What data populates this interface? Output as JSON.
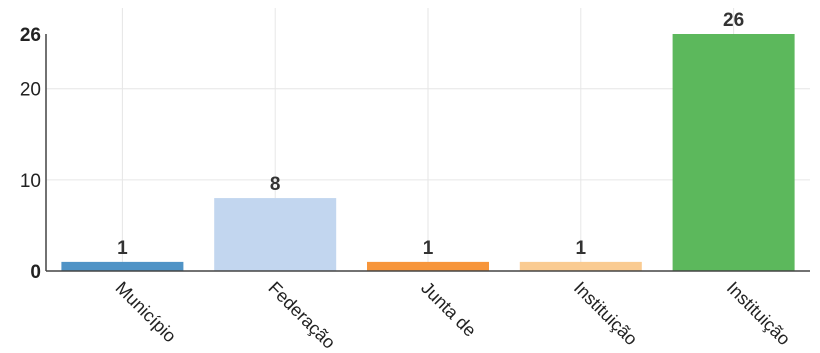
{
  "chart_data": {
    "type": "bar",
    "categories": [
      "Município",
      "Federação",
      "Junta de",
      "Instituição",
      "Instituição"
    ],
    "values": [
      1,
      8,
      1,
      1,
      26
    ],
    "colors": [
      "#4f93c6",
      "#c2d6ef",
      "#f7953a",
      "#facb91",
      "#5cb85c"
    ],
    "ylim": [
      0,
      26
    ],
    "yticks": [
      0,
      10,
      20,
      26
    ],
    "ymax_label_bold": true,
    "grid": true,
    "title": "",
    "xlabel": "",
    "ylabel": ""
  }
}
